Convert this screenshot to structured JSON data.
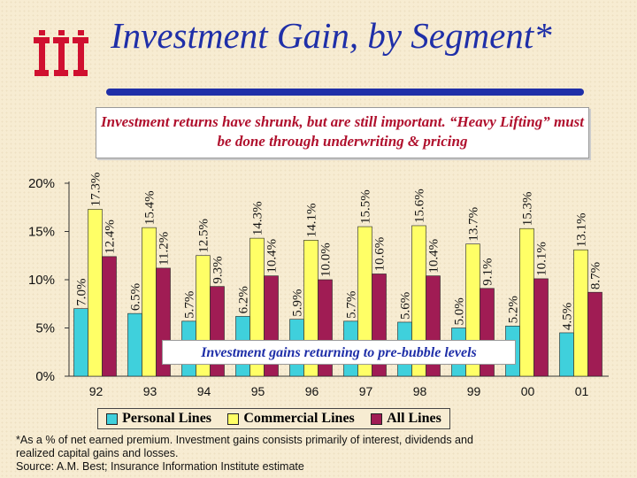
{
  "header": {
    "title": "Investment Gain, by Segment*"
  },
  "callouts": {
    "top": "Investment returns have shrunk, but are still important. “Heavy Lifting” must be done through underwriting & pricing",
    "middle": "Investment gains returning to pre-bubble levels"
  },
  "footnote": {
    "line1": "*As a % of net earned premium. Investment gains consists primarily of interest, dividends and",
    "line2": " realized capital gains and losses.",
    "line3": "Source: A.M. Best; Insurance Information Institute estimate"
  },
  "colors": {
    "personal": "#3fd0dc",
    "commercial": "#ffff66",
    "all": "#a01c54",
    "title": "#1f2fa8",
    "callout_red": "#b0102d",
    "logo": "#d01030"
  },
  "logo": {
    "icon": "iii-logo-icon"
  },
  "chart_data": {
    "type": "bar",
    "categories": [
      "92",
      "93",
      "94",
      "95",
      "96",
      "97",
      "98",
      "99",
      "00",
      "01"
    ],
    "series": [
      {
        "name": "Personal Lines",
        "values": [
          7.0,
          6.5,
          5.7,
          6.2,
          5.9,
          5.7,
          5.6,
          5.0,
          5.2,
          4.5
        ]
      },
      {
        "name": "Commercial Lines",
        "values": [
          17.3,
          15.4,
          12.5,
          14.3,
          14.1,
          15.5,
          15.6,
          13.7,
          15.3,
          13.1
        ]
      },
      {
        "name": "All Lines",
        "values": [
          12.4,
          11.2,
          9.3,
          10.4,
          10.0,
          10.6,
          10.4,
          9.1,
          10.1,
          8.7
        ]
      }
    ],
    "value_labels": [
      [
        "7.0%",
        "6.5%",
        "5.7%",
        "6.2%",
        "5.9%",
        "5.7%",
        "5.6%",
        "5.0%",
        "5.2%",
        "4.5%"
      ],
      [
        "17.3%",
        "15.4%",
        "12.5%",
        "14.3%",
        "14.1%",
        "15.5%",
        "15.6%",
        "13.7%",
        "15.3%",
        "13.1%"
      ],
      [
        "12.4%",
        "11.2%",
        "9.3%",
        "10.4%",
        "10.0%",
        "10.6%",
        "10.4%",
        "9.1%",
        "10.1%",
        "8.7%"
      ]
    ],
    "yticks": [
      0,
      5,
      10,
      15,
      20
    ],
    "ytick_labels": [
      "0%",
      "5%",
      "10%",
      "15%",
      "20%"
    ],
    "ylim": [
      0,
      20
    ],
    "grid": false,
    "legend_position": "bottom"
  }
}
